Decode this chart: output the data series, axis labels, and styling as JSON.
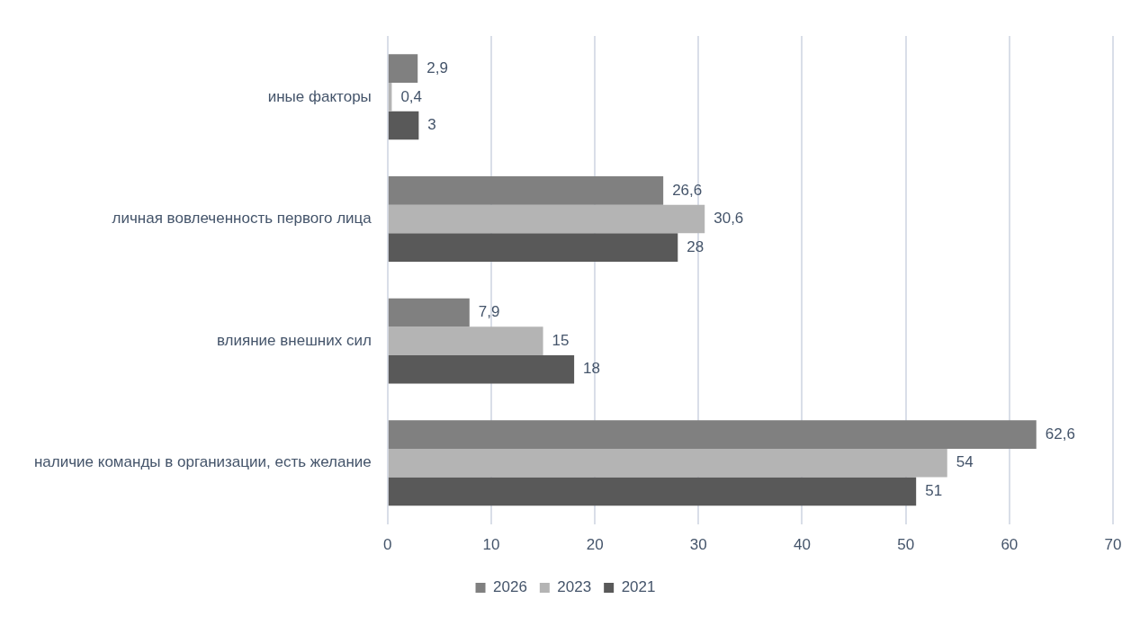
{
  "chart_data": {
    "type": "bar",
    "orientation": "horizontal",
    "categories": [
      "иные факторы",
      "личная вовлеченность первого лица",
      "влияние внешних сил",
      "наличие команды в организации, есть желание"
    ],
    "series": [
      {
        "name": "2026",
        "color": "#808080",
        "values": [
          2.9,
          26.6,
          7.9,
          62.6
        ],
        "value_labels": [
          "2,9",
          "26,6",
          "7,9",
          "62,6"
        ]
      },
      {
        "name": "2023",
        "color": "#b4b4b4",
        "values": [
          0.4,
          30.6,
          15,
          54
        ],
        "value_labels": [
          "0,4",
          "30,6",
          "15",
          "54"
        ]
      },
      {
        "name": "2021",
        "color": "#595959",
        "values": [
          3,
          28,
          18,
          51
        ],
        "value_labels": [
          "3",
          "28",
          "18",
          "51"
        ]
      }
    ],
    "xlim": [
      0,
      70
    ],
    "xticks": [
      0,
      10,
      20,
      30,
      40,
      50,
      60,
      70
    ],
    "grid": "x",
    "legend": "bottom"
  }
}
